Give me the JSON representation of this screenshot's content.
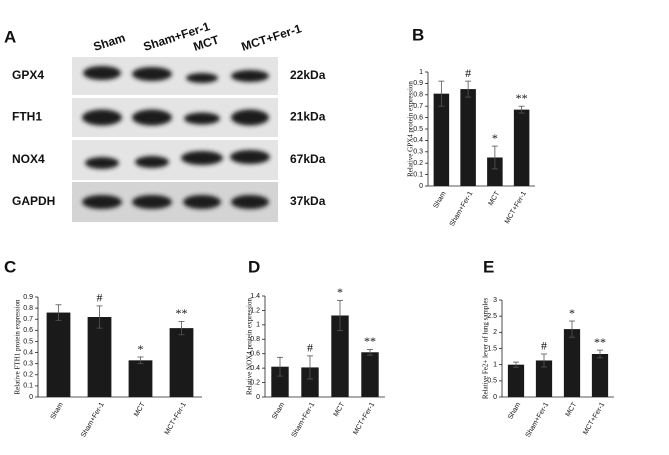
{
  "panels": [
    "A",
    "B",
    "C",
    "D",
    "E"
  ],
  "blot": {
    "lanes": [
      "Sham",
      "Sham+Fer-1",
      "MCT",
      "MCT+Fer-1"
    ],
    "proteins": [
      "GPX4",
      "FTH1",
      "NOX4",
      "GAPDH"
    ],
    "sizes": [
      "22kDa",
      "21kDa",
      "67kDa",
      "37kDa"
    ]
  },
  "chart_data": [
    {
      "type": "bar",
      "ylabel": "Relative GPX4 protein expression",
      "color": "#1a1a1a",
      "categories": [
        "Sham",
        "Sham+Fer-1",
        "MCT",
        "MCT+Fer-1"
      ],
      "values": [
        0.81,
        0.85,
        0.25,
        0.67
      ],
      "errors": [
        0.11,
        0.07,
        0.1,
        0.03
      ],
      "annotations": [
        null,
        "#",
        "*",
        "**"
      ],
      "ylim": [
        0,
        1
      ],
      "yticks": [
        0,
        0.1,
        0.2,
        0.3,
        0.4,
        0.5,
        0.6,
        0.7,
        0.8,
        0.9,
        1
      ]
    },
    {
      "type": "bar",
      "ylabel": "Relative FTH1 protein expression",
      "color": "#1a1a1a",
      "categories": [
        "Sham",
        "Sham+Fer-1",
        "MCT",
        "MCT+Fer-1"
      ],
      "values": [
        0.76,
        0.72,
        0.33,
        0.62
      ],
      "errors": [
        0.07,
        0.1,
        0.03,
        0.06
      ],
      "annotations": [
        null,
        "#",
        "*",
        "**"
      ],
      "ylim": [
        0,
        0.9
      ],
      "yticks": [
        0,
        0.1,
        0.2,
        0.3,
        0.4,
        0.5,
        0.6,
        0.7,
        0.8,
        0.9
      ]
    },
    {
      "type": "bar",
      "ylabel": "Relative NOX4 protein expression",
      "color": "#1a1a1a",
      "categories": [
        "Sham",
        "Sham+Fer-1",
        "MCT",
        "MCT+Fer-1"
      ],
      "values": [
        0.42,
        0.41,
        1.13,
        0.62
      ],
      "errors": [
        0.13,
        0.16,
        0.21,
        0.04
      ],
      "annotations": [
        null,
        "#",
        "*",
        "**"
      ],
      "ylim": [
        0,
        1.4
      ],
      "yticks": [
        0,
        0.2,
        0.4,
        0.6,
        0.8,
        1,
        1.2,
        1.4
      ]
    },
    {
      "type": "bar",
      "ylabel": "Relative Fe2+ lever of lung samples",
      "color": "#1a1a1a",
      "categories": [
        "Sham",
        "Sham+Fer-1",
        "MCT",
        "MCT+Fer-1"
      ],
      "values": [
        1.0,
        1.13,
        2.1,
        1.33
      ],
      "errors": [
        0.08,
        0.2,
        0.25,
        0.12
      ],
      "annotations": [
        null,
        "#",
        "*",
        "**"
      ],
      "ylim": [
        0,
        3
      ],
      "yticks": [
        0,
        0.5,
        1,
        1.5,
        2,
        2.5,
        3
      ]
    }
  ]
}
